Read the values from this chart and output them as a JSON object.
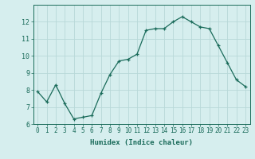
{
  "x": [
    0,
    1,
    2,
    3,
    4,
    5,
    6,
    7,
    8,
    9,
    10,
    11,
    12,
    13,
    14,
    15,
    16,
    17,
    18,
    19,
    20,
    21,
    22,
    23
  ],
  "y": [
    7.9,
    7.3,
    8.3,
    7.2,
    6.3,
    6.4,
    6.5,
    7.8,
    8.9,
    9.7,
    9.8,
    10.1,
    11.5,
    11.6,
    11.6,
    12.0,
    12.3,
    12.0,
    11.7,
    11.6,
    10.6,
    9.6,
    8.6,
    8.2
  ],
  "xlabel": "Humidex (Indice chaleur)",
  "ylim": [
    6,
    13
  ],
  "yticks": [
    6,
    7,
    8,
    9,
    10,
    11,
    12
  ],
  "xticks": [
    0,
    1,
    2,
    3,
    4,
    5,
    6,
    7,
    8,
    9,
    10,
    11,
    12,
    13,
    14,
    15,
    16,
    17,
    18,
    19,
    20,
    21,
    22,
    23
  ],
  "line_color": "#1a6b5a",
  "marker_color": "#1a6b5a",
  "bg_color": "#d6eeee",
  "grid_color": "#b8d8d8",
  "tick_color": "#1a6b5a",
  "xlabel_fontsize": 6.5,
  "xlabel_fontweight": "bold",
  "tick_fontsize": 5.5,
  "ytick_fontsize": 6.0
}
